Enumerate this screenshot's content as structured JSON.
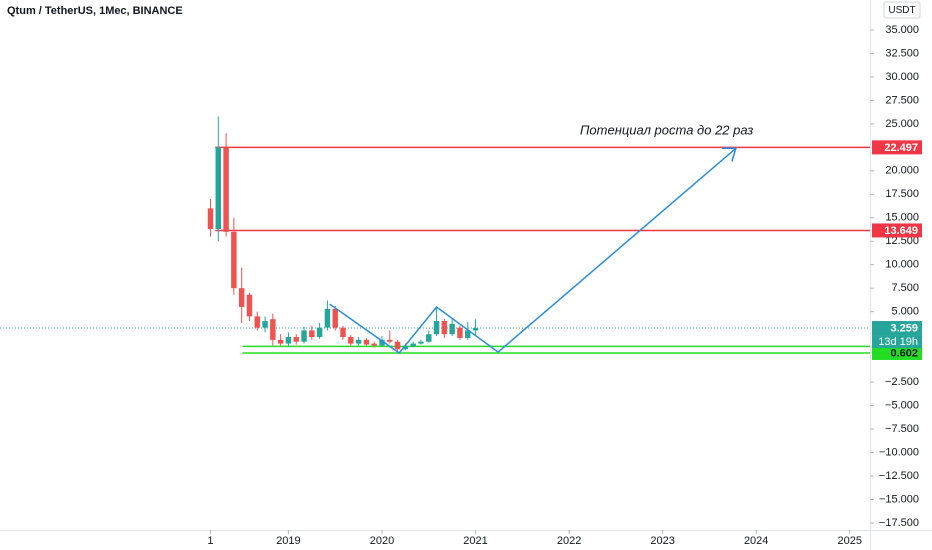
{
  "chart_data": {
    "type": "candlestick",
    "title": "Qtum / TetherUS, 1Мес, BINANCE",
    "annotation": "Потенциал роста до 22 раз",
    "currency_label": "USDT",
    "up_color": "#26a69a",
    "down_color": "#ef5350",
    "x": [
      0,
      1,
      2,
      3,
      4,
      5,
      6,
      7,
      8,
      9,
      10,
      11,
      12,
      13,
      14,
      15,
      16,
      17,
      18,
      19,
      20,
      21,
      22,
      23,
      24,
      25,
      26,
      27,
      28,
      29,
      30,
      31,
      32,
      33,
      34
    ],
    "open": [
      16,
      13.8,
      22.5,
      13.5,
      7.5,
      6.8,
      4.5,
      3.3,
      4.2,
      2.0,
      1.6,
      2.3,
      1.8,
      3.0,
      2.3,
      3.3,
      5.3,
      3.3,
      2.3,
      1.6,
      2.0,
      1.6,
      1.4,
      2.0,
      1.8,
      1.0,
      1.3,
      1.6,
      1.8,
      2.6,
      4.0,
      2.6,
      3.3,
      2.2,
      3.0
    ],
    "high": [
      17,
      25.8,
      24,
      15,
      9.7,
      7,
      5,
      4.5,
      4.8,
      2.6,
      2.8,
      2.6,
      3.4,
      3.5,
      3.8,
      6.2,
      5.6,
      3.5,
      2.5,
      2.3,
      2.2,
      1.8,
      2.4,
      3.0,
      2.0,
      1.6,
      1.8,
      2.0,
      3.0,
      5.4,
      4.2,
      4.2,
      3.5,
      3.9,
      4.2
    ],
    "low": [
      13,
      12.5,
      13,
      6.8,
      3.8,
      4,
      3,
      2.8,
      1.4,
      1.4,
      1.3,
      1.5,
      1.6,
      2,
      2.1,
      3,
      3,
      2,
      1.4,
      1.4,
      1.4,
      1.2,
      1.3,
      1.6,
      0.6,
      0.9,
      1.2,
      1.5,
      1.7,
      2.4,
      2.2,
      2.4,
      2,
      2.0,
      2.5
    ],
    "close": [
      13.8,
      22.5,
      13.5,
      7.5,
      5.5,
      4.5,
      3.3,
      4,
      2.0,
      1.6,
      2.3,
      1.8,
      3.0,
      2.3,
      3.3,
      5.3,
      3.3,
      2.3,
      1.6,
      2.0,
      1.5,
      1.4,
      2.0,
      1.8,
      1.0,
      1.3,
      1.6,
      1.8,
      2.6,
      4.0,
      2.6,
      3.7,
      2.2,
      3.0,
      3.259
    ],
    "xlim": [
      -27,
      84.6
    ],
    "xticks": [
      {
        "value": 0,
        "label": "1"
      },
      {
        "value": 10,
        "label": "2019"
      },
      {
        "value": 22,
        "label": "2020"
      },
      {
        "value": 34,
        "label": "2021"
      },
      {
        "value": 46,
        "label": "2022"
      },
      {
        "value": 58,
        "label": "2023"
      },
      {
        "value": 70,
        "label": "2024"
      },
      {
        "value": 82,
        "label": "2025"
      }
    ],
    "ylim": [
      -18.25,
      38.19
    ],
    "yticks": [
      {
        "value": 35,
        "label": "35.000"
      },
      {
        "value": 32.5,
        "label": "32.500"
      },
      {
        "value": 30,
        "label": "30.000"
      },
      {
        "value": 27.5,
        "label": "27.500"
      },
      {
        "value": 25,
        "label": "25.000"
      },
      {
        "value": 20,
        "label": "20.000"
      },
      {
        "value": 17.5,
        "label": "17.500"
      },
      {
        "value": 15,
        "label": "15.000"
      },
      {
        "value": 12.5,
        "label": "12.500"
      },
      {
        "value": 10,
        "label": "10.000"
      },
      {
        "value": 7.5,
        "label": "7.500"
      },
      {
        "value": 5,
        "label": "5.000"
      },
      {
        "value": -2.5,
        "label": "−2.500"
      },
      {
        "value": -5,
        "label": "−5.000"
      },
      {
        "value": -7.5,
        "label": "−7.500"
      },
      {
        "value": -10,
        "label": "−10.000"
      },
      {
        "value": -12.5,
        "label": "−12.500"
      },
      {
        "value": -15,
        "label": "−15.000"
      },
      {
        "value": -17.5,
        "label": "−17.500"
      }
    ],
    "levels": [
      {
        "value": 22.497,
        "color": "#f23645",
        "x_start": 0.6
      },
      {
        "value": 13.649,
        "color": "#f23645",
        "x_start": 0.6
      },
      {
        "value": 1.308,
        "color": "#22dd22",
        "x_start": 4.1
      },
      {
        "value": 0.602,
        "color": "#22dd22",
        "x_start": 4.1
      }
    ],
    "last_price": 3.259,
    "countdown": "13d 19h",
    "projection": {
      "color": "#2a8de0",
      "x": [
        15.3,
        24.2,
        29,
        36.9,
        67.4
      ],
      "values": [
        5.8,
        0.6,
        5.5,
        0.7,
        22.4
      ]
    }
  }
}
